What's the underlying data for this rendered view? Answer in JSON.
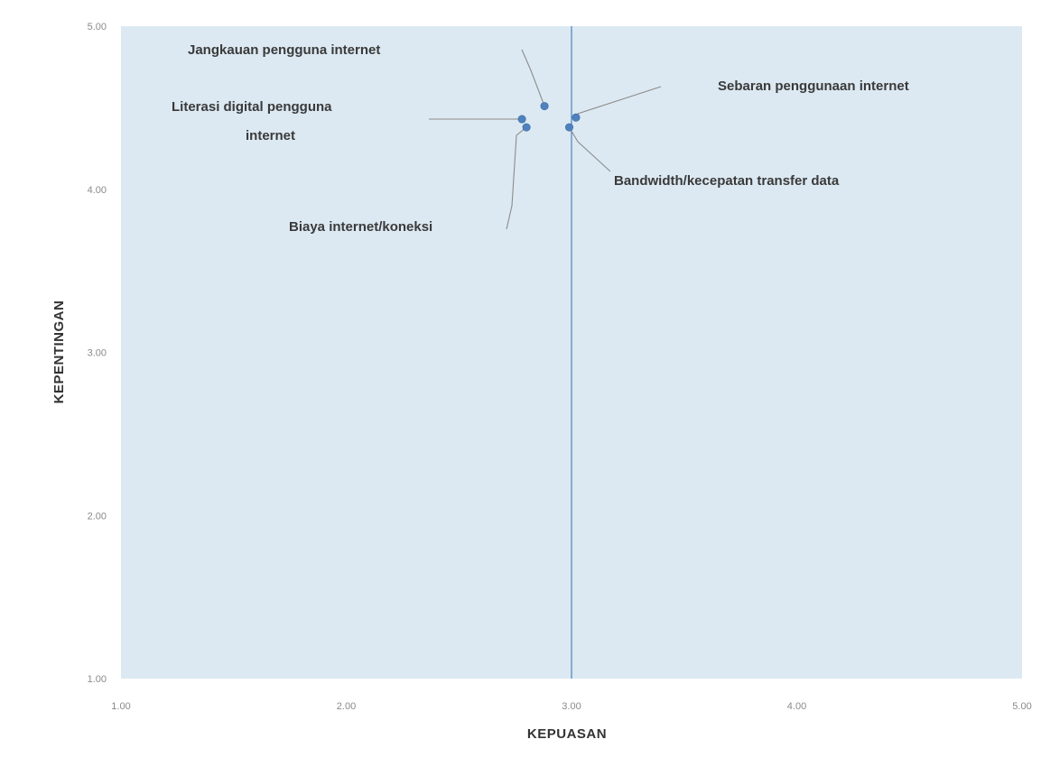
{
  "chart_data": {
    "type": "scatter",
    "title": "",
    "xlabel": "KEPUASAN",
    "ylabel": "KEPENTINGAN",
    "xlim": [
      1.0,
      5.0
    ],
    "ylim": [
      1.0,
      5.0
    ],
    "x_ticks": [
      "1.00",
      "2.00",
      "3.00",
      "4.00",
      "5.00"
    ],
    "y_ticks": [
      "1.00",
      "2.00",
      "3.00",
      "4.00",
      "5.00"
    ],
    "reference_line_x": 3.0,
    "grid": false,
    "legend": "none",
    "plot_background": "#dce9f2",
    "reference_line_color": "#4f81bd",
    "marker_color": "#4f81bd",
    "points": [
      {
        "label": "Jangkauan pengguna internet",
        "x": 2.88,
        "y": 4.51
      },
      {
        "label": "Sebaran penggunaan internet",
        "x": 3.02,
        "y": 4.44
      },
      {
        "label": "Literasi digital pengguna internet",
        "x": 2.78,
        "y": 4.43
      },
      {
        "label": "Biaya internet/koneksi",
        "x": 2.8,
        "y": 4.38
      },
      {
        "label": "Bandwidth/kecepatan transfer data",
        "x": 2.99,
        "y": 4.38
      }
    ]
  }
}
